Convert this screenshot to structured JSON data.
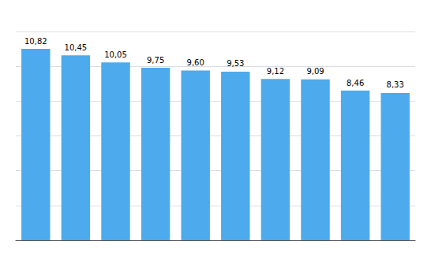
{
  "chart_data": {
    "type": "bar",
    "categories": [
      null,
      null,
      null,
      null,
      null,
      null,
      null,
      null,
      null,
      null
    ],
    "values": [
      10.82,
      10.45,
      10.05,
      9.75,
      9.6,
      9.53,
      9.12,
      9.09,
      8.46,
      8.33
    ],
    "value_labels": [
      "10,82",
      "10,45",
      "10,05",
      "9,75",
      "9,60",
      "9,53",
      "9,12",
      "9,09",
      "8,46",
      "8,33"
    ],
    "color": "#4DAAEC",
    "ylim": [
      0,
      11.8
    ],
    "yticks": [
      0,
      1.9666666666666666,
      3.933333333333333,
      5.9,
      7.866666666666666,
      9.833333333333332,
      11.8
    ],
    "grid": true,
    "data_labels": true,
    "tick_labels": false
  }
}
